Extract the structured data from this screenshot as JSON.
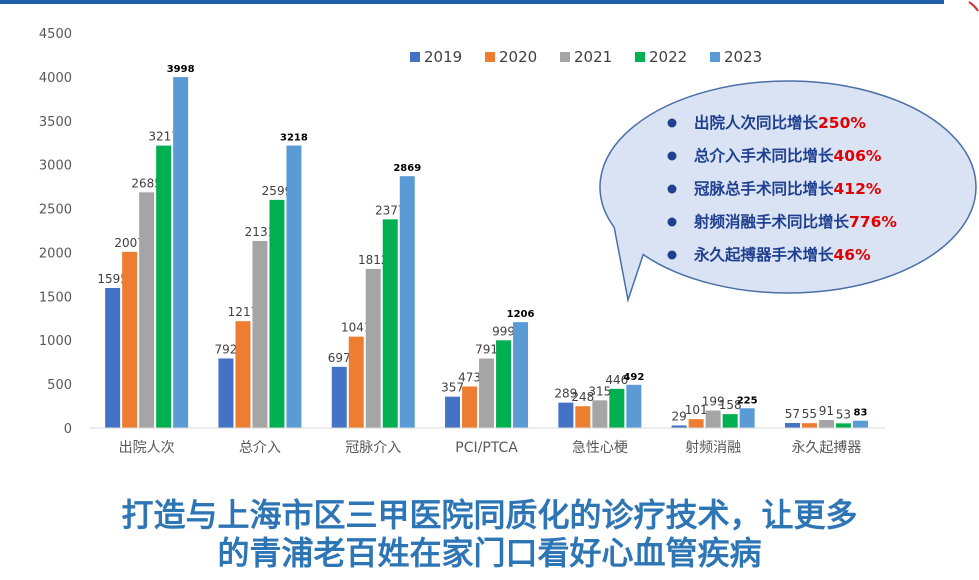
{
  "chart_data": {
    "type": "bar",
    "categories": [
      "出院人次",
      "总介入",
      "冠脉介入",
      "PCI/PTCA",
      "急性心梗",
      "射频消融",
      "永久起搏器"
    ],
    "series": [
      {
        "name": "2019",
        "color": "#4472c4",
        "values": [
          1595,
          792,
          697,
          357,
          289,
          29,
          57
        ]
      },
      {
        "name": "2020",
        "color": "#ed7d31",
        "values": [
          2007,
          1217,
          1041,
          473,
          248,
          101,
          55
        ]
      },
      {
        "name": "2021",
        "color": "#a5a5a5",
        "values": [
          2685,
          2131,
          1812,
          791,
          315,
          199,
          91
        ]
      },
      {
        "name": "2022",
        "color": "#00b050",
        "values": [
          3217,
          2599,
          2377,
          999,
          446,
          158,
          53
        ]
      },
      {
        "name": "2023",
        "color": "#5b9bd5",
        "values": [
          3998,
          3218,
          2869,
          1206,
          492,
          225,
          83
        ]
      }
    ],
    "y_ticks": [
      0,
      500,
      1000,
      1500,
      2000,
      2500,
      3000,
      3500,
      4000,
      4500
    ],
    "ylim": [
      0,
      4500
    ],
    "legend_position": "top",
    "grid": false,
    "title": "",
    "xlabel": "",
    "ylabel": ""
  },
  "callout": {
    "items": [
      {
        "text": "出院人次同比增长",
        "value": "250%"
      },
      {
        "text": "总介入手术同比增长",
        "value": "406%"
      },
      {
        "text": "冠脉总手术同比增长",
        "value": "412%"
      },
      {
        "text": "射频消融手术同比增长",
        "value": "776%"
      },
      {
        "text": "永久起搏器手术增长",
        "value": "46%"
      }
    ],
    "text_color": "#1f3f8f",
    "value_color": "#e00000",
    "fill_color": "#dae3f3",
    "border_color": "#4a6fa8"
  },
  "headline": {
    "line1": "打造与上海市区三甲医院同质化的诊疗技术，让更多",
    "line2": "的青浦老百姓在家门口看好心血管疾病"
  }
}
